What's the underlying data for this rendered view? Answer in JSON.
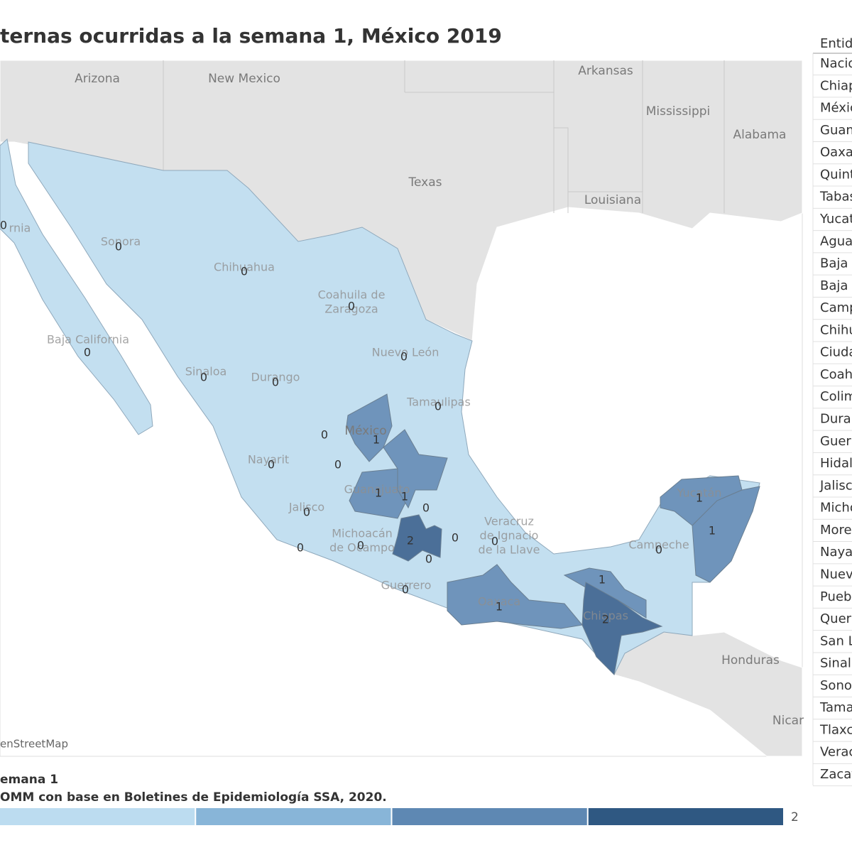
{
  "title": "ternas ocurridas a la semana 1, México 2019",
  "map": {
    "countries": [
      "Arizona",
      "New Mexico",
      "Arkansas",
      "Mississippi",
      "Alabama",
      "Texas",
      "Louisiana",
      "Honduras",
      "Nicar"
    ],
    "country_label": "México",
    "attribution": "enStreetMap",
    "fill_by_value": [
      "#c3dff0",
      "#6f94bb",
      "#4b6f98"
    ],
    "regions": [
      {
        "name": "rnia",
        "value": 0
      },
      {
        "name": "Sonora",
        "value": 0
      },
      {
        "name": "Chihuahua",
        "value": 0
      },
      {
        "name": [
          "Coahuila de",
          "Zaragoza"
        ],
        "value": 0
      },
      {
        "name": "Baja California",
        "value": 0
      },
      {
        "name": "Sinaloa",
        "value": 0
      },
      {
        "name": "Durango",
        "value": 0
      },
      {
        "name": "Nuevo León",
        "value": 0
      },
      {
        "name": "Tamaulipas",
        "value": 0
      },
      {
        "value": 0
      },
      {
        "value": 0
      },
      {
        "name": "Nayarit",
        "value": 0
      },
      {
        "name": "Jalisco",
        "value": 0
      },
      {
        "value": 0
      },
      {
        "name": [
          "Michoacán",
          "de Ocampo"
        ],
        "value": 0
      },
      {
        "name": "Guerrero",
        "value": 0
      },
      {
        "value": 0
      },
      {
        "value": 0
      },
      {
        "value": 0
      },
      {
        "name": [
          "Veracruz",
          "de Ignacio",
          "de la Llave"
        ],
        "value": 0
      },
      {
        "name": "Oaxaca",
        "value": 1
      },
      {
        "value": 1
      },
      {
        "name": "Chiapas",
        "value": 2
      },
      {
        "name": "Campeche",
        "value": 0
      },
      {
        "name": "Yucatán",
        "value": 1
      },
      {
        "value": 1
      },
      {
        "value": 1
      },
      {
        "name": "Guanajuato",
        "value": 1
      },
      {
        "value": 1
      },
      {
        "value": 2
      }
    ]
  },
  "table": {
    "header": "Entid",
    "rows": [
      "Nacio",
      "Chiap",
      "Méxic",
      "Guan",
      "Oaxa",
      "Quint",
      "Tabas",
      "Yucat",
      "Agua",
      "Baja (",
      "Baja (",
      "Camp",
      "Chihu",
      "Ciuda",
      "Coahu",
      "Colim",
      "Duran",
      "Guerr",
      "Hidal",
      "Jalisc",
      "Micho",
      "More",
      "Naya",
      "Nuev",
      "Pueb",
      "Quer",
      "San L",
      "Sinal",
      "Sono",
      "Tama",
      "Tlaxc",
      "Verac",
      "Zacat"
    ]
  },
  "footer": {
    "subtitle": "emana 1",
    "source": "OMM con base en Boletines de Epidemiología SSA, 2020."
  },
  "legend": {
    "colors": [
      "#bcdcf0",
      "#88b5d8",
      "#5e88b3",
      "#2f5882"
    ],
    "max_label": 2
  }
}
